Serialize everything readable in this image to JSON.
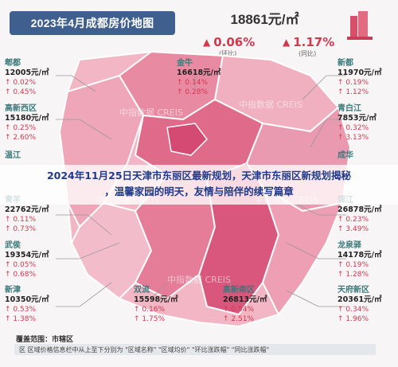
{
  "header": {
    "map_title": "2023年4月成都房价地图",
    "avg_price": "18861元/㎡",
    "mom_value": "0.06%",
    "mom_label": "(环比)",
    "yoy_value": "1.17%",
    "yoy_label": "(同比)"
  },
  "districts": [
    {
      "name": "郫都",
      "price": "12005元/㎡",
      "mom": "0.02%",
      "yoy": "0.45%"
    },
    {
      "name": "高新西区",
      "price": "15180元/㎡",
      "mom": "0.25%",
      "yoy": "2.60%"
    },
    {
      "name": "温江",
      "price": "",
      "mom": "",
      "yoy": ""
    },
    {
      "name": "青羊",
      "price": "22762元/㎡",
      "mom": "0.11%",
      "yoy": "0.73%"
    },
    {
      "name": "武侯",
      "price": "19354元/㎡",
      "mom": "0.05%",
      "yoy": "0.68%"
    },
    {
      "name": "新津",
      "price": "10350元/㎡",
      "mom": "0.53%",
      "yoy": "1.38%"
    },
    {
      "name": "金牛",
      "price": "16618元/㎡",
      "mom": "0.14%",
      "yoy": "0.28%"
    },
    {
      "name": "双流",
      "price": "15598元/㎡",
      "mom": "0.16%",
      "yoy": "1.75%"
    },
    {
      "name": "高新南区",
      "price": "26813元/㎡",
      "mom": "0.54%",
      "yoy": "2.51%"
    },
    {
      "name": "新都",
      "price": "11970元/㎡",
      "mom": "0.19%",
      "yoy": "1.12%"
    },
    {
      "name": "青白江",
      "price": "7853元/㎡",
      "mom": "0.32%",
      "yoy": "3.13%"
    },
    {
      "name": "成华",
      "price": "",
      "mom": "",
      "yoy": ""
    },
    {
      "name": "锦江",
      "price": "26878元/㎡",
      "mom": "0.23%",
      "yoy": "3.49%"
    },
    {
      "name": "龙泉驿",
      "price": "14178元/㎡",
      "mom": "0.19%",
      "yoy": "1.28%"
    },
    {
      "name": "天府新区",
      "price": "20361元/㎡",
      "mom": "0.34%",
      "yoy": "1.96%"
    }
  ],
  "headline": {
    "line1": "2024年11月25日天津市东丽区最新规划，天津市东丽区新规划揭秘",
    "line2": "，温馨家园的明天，友情与陪伴的续写篇章"
  },
  "legend": {
    "title": "覆盖范围：市辖区",
    "text": "区   区域价格信息栏中从上至下分别为 \"区域名称\"  \"区域均价\"  \"环比涨跌幅\"  \"同比涨跌幅\""
  },
  "colors": {
    "accent": "#d2394f",
    "title_bg": "#3f5f8f",
    "headline": "#1f3a8a"
  },
  "watermark": "中指数据 CREIS"
}
